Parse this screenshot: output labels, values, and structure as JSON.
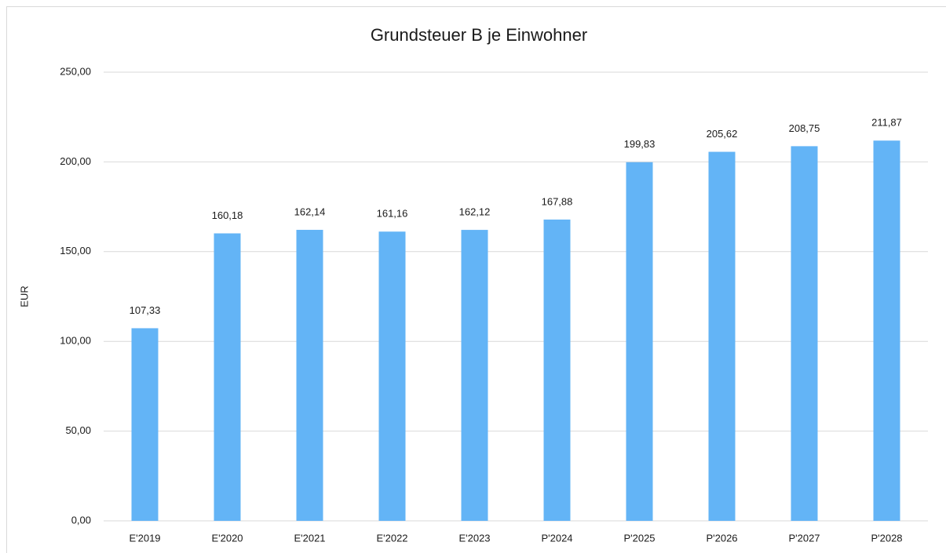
{
  "chart_data": {
    "type": "bar",
    "title": "Grundsteuer B je Einwohner",
    "y_label": "EUR",
    "categories": [
      "E'2019",
      "E'2020",
      "E'2021",
      "E'2022",
      "E'2023",
      "P'2024",
      "P'2025",
      "P'2026",
      "P'2027",
      "P'2028"
    ],
    "values": [
      107.33,
      160.18,
      162.14,
      161.16,
      162.12,
      167.88,
      199.83,
      205.62,
      208.75,
      211.87
    ],
    "value_labels": [
      "107,33",
      "160,18",
      "162,14",
      "161,16",
      "162,12",
      "167,88",
      "199,83",
      "205,62",
      "208,75",
      "211,87"
    ],
    "color": "#63b4f6",
    "ylim": [
      0,
      250
    ],
    "yticks": [
      {
        "value": 0,
        "label": "0,00"
      },
      {
        "value": 50,
        "label": "50,00"
      },
      {
        "value": 100,
        "label": "100,00"
      },
      {
        "value": 150,
        "label": "150,00"
      },
      {
        "value": 200,
        "label": "200,00"
      },
      {
        "value": 250,
        "label": "250,00"
      }
    ],
    "grid": true
  }
}
